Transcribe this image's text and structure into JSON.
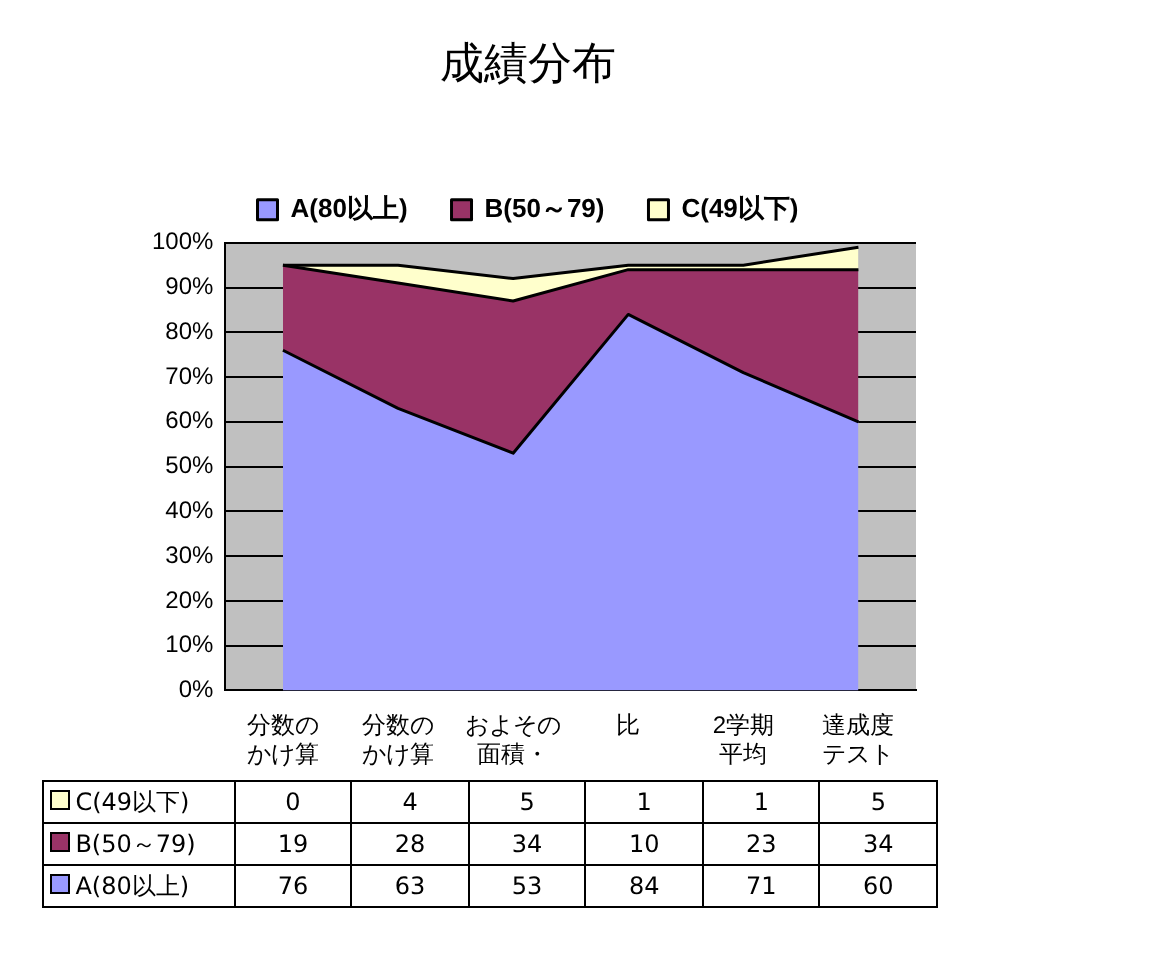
{
  "chart_data": {
    "type": "area",
    "title": "成績分布",
    "categories": [
      "分数のかけ算",
      "分数のかけ算",
      "およその面積・",
      "比",
      "2学期平均",
      "達成度テスト"
    ],
    "stacked": true,
    "legend": "top",
    "grid": "y",
    "ylim": [
      0,
      100
    ],
    "yticks": [
      {
        "value": 0,
        "label": "0%"
      },
      {
        "value": 10,
        "label": "10%"
      },
      {
        "value": 20,
        "label": "20%"
      },
      {
        "value": 30,
        "label": "30%"
      },
      {
        "value": 40,
        "label": "40%"
      },
      {
        "value": 50,
        "label": "50%"
      },
      {
        "value": 60,
        "label": "60%"
      },
      {
        "value": 70,
        "label": "70%"
      },
      {
        "value": 80,
        "label": "80%"
      },
      {
        "value": 90,
        "label": "90%"
      },
      {
        "value": 100,
        "label": "100%"
      }
    ],
    "series": [
      {
        "name": "A(80以上)",
        "color": "#9999ff",
        "values": [
          76,
          63,
          53,
          84,
          71,
          60
        ],
        "value_labels": [
          "76",
          "63",
          "53",
          "84",
          "71",
          "60"
        ]
      },
      {
        "name": "B(50～79)",
        "color": "#993366",
        "values": [
          19,
          28,
          34,
          10,
          23,
          34
        ],
        "value_labels": [
          "19",
          "28",
          "34",
          "10",
          "23",
          "34"
        ]
      },
      {
        "name": "C(49以下)",
        "color": "#ffffcc",
        "values": [
          0,
          4,
          5,
          1,
          1,
          5
        ],
        "value_labels": [
          "0",
          "4",
          "5",
          "1",
          "1",
          "5"
        ]
      }
    ]
  }
}
